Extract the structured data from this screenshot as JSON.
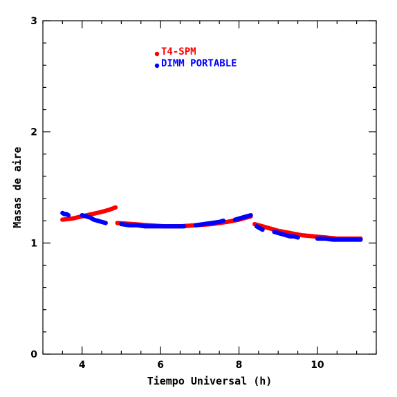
{
  "chart_data": {
    "type": "scatter",
    "title": "",
    "xlabel": "Tiempo Universal (h)",
    "ylabel": "Masas de aire",
    "xlim": [
      3.0,
      11.5
    ],
    "ylim": [
      0,
      3
    ],
    "x_ticks": [
      "4",
      "6",
      "8",
      "10"
    ],
    "x_tick_values": [
      4,
      6,
      8,
      10
    ],
    "y_ticks": [
      "0",
      "1",
      "2",
      "3"
    ],
    "y_tick_values": [
      0,
      1,
      2,
      3
    ],
    "grid": false,
    "legend_position": "top-center",
    "series": [
      {
        "name": "T4-SPM",
        "color": "#ff0000",
        "segments": [
          {
            "x": [
              3.5,
              3.75,
              4.0,
              4.25,
              4.5,
              4.7,
              4.85
            ],
            "y": [
              1.21,
              1.22,
              1.24,
              1.26,
              1.28,
              1.3,
              1.32
            ]
          },
          {
            "x": [
              4.9,
              5.3,
              5.7,
              6.1,
              6.5,
              6.9,
              7.3,
              7.7,
              8.0,
              8.3
            ],
            "y": [
              1.18,
              1.17,
              1.16,
              1.15,
              1.15,
              1.16,
              1.17,
              1.19,
              1.21,
              1.24
            ]
          },
          {
            "x": [
              8.4,
              8.7,
              9.0,
              9.3,
              9.6,
              9.9,
              10.2,
              10.5,
              10.8,
              11.1
            ],
            "y": [
              1.17,
              1.14,
              1.11,
              1.09,
              1.07,
              1.06,
              1.05,
              1.04,
              1.04,
              1.04
            ]
          }
        ]
      },
      {
        "name": "DIMM PORTABLE",
        "color": "#0000ff",
        "segments": [
          {
            "x": [
              3.5,
              3.55,
              3.6,
              3.65
            ],
            "y": [
              1.27,
              1.26,
              1.26,
              1.25
            ]
          },
          {
            "x": [
              4.0,
              4.1,
              4.2,
              4.3,
              4.4,
              4.5,
              4.6
            ],
            "y": [
              1.25,
              1.24,
              1.23,
              1.21,
              1.2,
              1.19,
              1.18
            ]
          },
          {
            "x": [
              5.0,
              5.2,
              5.4,
              5.6,
              5.8,
              6.0,
              6.2,
              6.4,
              6.6
            ],
            "y": [
              1.17,
              1.16,
              1.16,
              1.15,
              1.15,
              1.15,
              1.15,
              1.15,
              1.15
            ]
          },
          {
            "x": [
              6.9,
              7.1,
              7.3,
              7.5,
              7.6
            ],
            "y": [
              1.16,
              1.17,
              1.18,
              1.19,
              1.2
            ]
          },
          {
            "x": [
              7.9,
              8.0,
              8.1,
              8.2,
              8.3
            ],
            "y": [
              1.21,
              1.22,
              1.23,
              1.24,
              1.25
            ]
          },
          {
            "x": [
              8.45,
              8.5,
              8.55,
              8.6
            ],
            "y": [
              1.15,
              1.14,
              1.13,
              1.12
            ]
          },
          {
            "x": [
              8.9,
              9.0,
              9.1,
              9.2,
              9.3,
              9.4,
              9.5
            ],
            "y": [
              1.1,
              1.09,
              1.08,
              1.07,
              1.06,
              1.06,
              1.05
            ]
          },
          {
            "x": [
              10.0,
              10.2,
              10.4,
              10.6,
              10.8,
              11.0,
              11.1
            ],
            "y": [
              1.04,
              1.04,
              1.03,
              1.03,
              1.03,
              1.03,
              1.03
            ]
          }
        ]
      }
    ]
  }
}
